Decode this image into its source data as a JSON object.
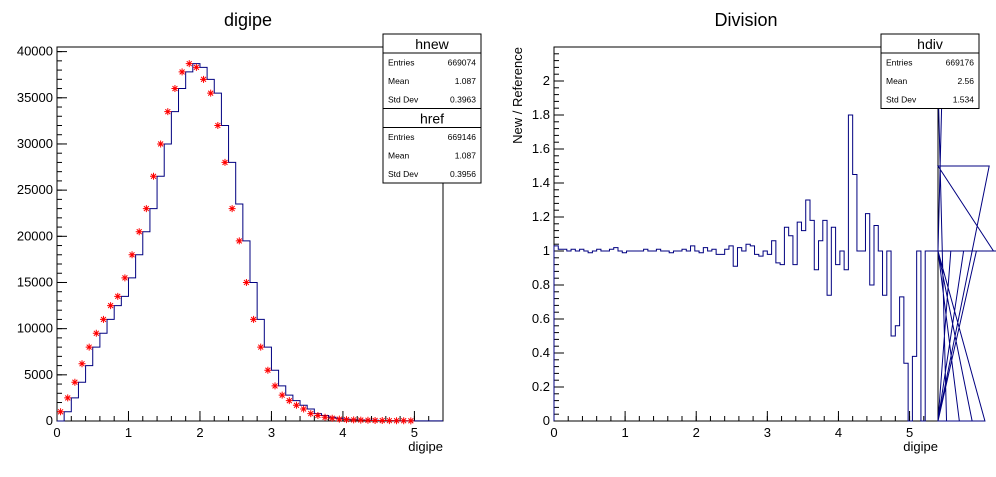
{
  "chart_data": [
    {
      "type": "line",
      "title": "digipe",
      "xlabel": "digipe",
      "ylabel": "",
      "xlim": [
        0,
        5.4
      ],
      "ylim": [
        0,
        40500
      ],
      "x_ticks": [
        0,
        1,
        2,
        3,
        4,
        5
      ],
      "y_ticks": [
        0,
        5000,
        10000,
        15000,
        20000,
        25000,
        30000,
        35000,
        40000
      ],
      "bin_width": 0.1,
      "colors": {
        "hnew": "#000080",
        "href": "#ff0000"
      },
      "series": [
        {
          "name": "hnew",
          "style": "step",
          "bin_start": 0,
          "values": [
            0,
            1000,
            2500,
            4200,
            6000,
            8000,
            9500,
            11000,
            12500,
            13500,
            15500,
            18000,
            20500,
            23000,
            26500,
            30000,
            33500,
            36000,
            37800,
            38700,
            38300,
            37000,
            35500,
            32000,
            28000,
            23500,
            19500,
            15000,
            11000,
            8000,
            5500,
            3800,
            2800,
            2200,
            1700,
            1300,
            800,
            600,
            400,
            300,
            200,
            150,
            120,
            100,
            80,
            60,
            50,
            40,
            30,
            30,
            20,
            20,
            10,
            10
          ]
        },
        {
          "name": "href",
          "style": "markers",
          "marker": "star",
          "x": [
            0.05,
            0.15,
            0.25,
            0.35,
            0.45,
            0.55,
            0.65,
            0.75,
            0.85,
            0.95,
            1.05,
            1.15,
            1.25,
            1.35,
            1.45,
            1.55,
            1.65,
            1.75,
            1.85,
            1.95,
            2.05,
            2.15,
            2.25,
            2.35,
            2.45,
            2.55,
            2.65,
            2.75,
            2.85,
            2.95,
            3.05,
            3.15,
            3.25,
            3.35,
            3.45,
            3.55,
            3.65,
            3.75,
            3.85,
            3.95,
            4.05,
            4.15,
            4.25,
            4.35,
            4.45,
            4.55,
            4.65,
            4.75,
            4.85,
            4.95
          ],
          "values": [
            1000,
            2500,
            4200,
            6200,
            8000,
            9500,
            11000,
            12500,
            13500,
            15500,
            18000,
            20500,
            23000,
            26500,
            30000,
            33500,
            36000,
            37800,
            38700,
            38300,
            37000,
            35500,
            32000,
            28000,
            23000,
            19500,
            15000,
            11000,
            8000,
            5500,
            3800,
            2800,
            2200,
            1700,
            1300,
            800,
            600,
            400,
            300,
            200,
            150,
            120,
            100,
            80,
            60,
            50,
            40,
            30,
            30,
            20
          ]
        }
      ],
      "stats": [
        {
          "name": "hnew",
          "rows": [
            [
              "Entries",
              "669074"
            ],
            [
              "Mean",
              "1.087"
            ],
            [
              "Std Dev",
              "0.3963"
            ]
          ]
        },
        {
          "name": "href",
          "rows": [
            [
              "Entries",
              "669146"
            ],
            [
              "Mean",
              "1.087"
            ],
            [
              "Std Dev",
              "0.3956"
            ]
          ]
        }
      ]
    },
    {
      "type": "line",
      "title": "Division",
      "xlabel": "digipe",
      "ylabel": "New / Reference",
      "xlim": [
        0,
        5.4
      ],
      "ylim": [
        0,
        2.2
      ],
      "x_ticks": [
        0,
        1,
        2,
        3,
        4,
        5
      ],
      "y_ticks": [
        0,
        0.2,
        0.4,
        0.6,
        0.8,
        1,
        1.2,
        1.4,
        1.6,
        1.8,
        2
      ],
      "bin_width": 0.06,
      "colors": {
        "hdiv": "#000080"
      },
      "series": [
        {
          "name": "hdiv",
          "style": "step",
          "bin_start": 0,
          "values": [
            1.03,
            1.01,
            1.01,
            1.0,
            1.01,
            1.0,
            1.01,
            1.0,
            0.99,
            1.0,
            1.01,
            1.0,
            1.0,
            1.01,
            1.02,
            1.0,
            0.99,
            1.0,
            1.0,
            1.0,
            1.0,
            1.01,
            1.0,
            1.0,
            1.01,
            1.0,
            1.0,
            0.99,
            1.0,
            1.0,
            1.01,
            1.0,
            1.03,
            1.0,
            0.99,
            1.02,
            1.0,
            1.01,
            0.98,
            0.98,
            1.01,
            1.03,
            0.91,
            1.02,
            1.0,
            1.04,
            1.03,
            0.98,
            0.97,
            1.0,
            0.98,
            1.06,
            0.93,
            0.92,
            1.14,
            1.09,
            0.92,
            1.17,
            1.12,
            1.3,
            1.18,
            0.89,
            1.06,
            1.18,
            0.74,
            1.14,
            0.92,
            1.0,
            0.89,
            1.8,
            1.45,
            1.0,
            1.0,
            1.22,
            0.8,
            1.15,
            1.0,
            0.74,
            1.0,
            0.5,
            0.56,
            0.73,
            0.34,
            0.0,
            0.38,
            1.0,
            0.0,
            1.0,
            1.0,
            1.0,
            1.0,
            2.0,
            0.0,
            1.0,
            1.0,
            0.0,
            1.0,
            1.0,
            0.0,
            1.0,
            1.0,
            0.0,
            1.5,
            1.0,
            1.0,
            1.0,
            1.0,
            1.0,
            1.0,
            1.0
          ]
        }
      ],
      "stats": [
        {
          "name": "hdiv",
          "rows": [
            [
              "Entries",
              "669176"
            ],
            [
              "Mean",
              "2.56"
            ],
            [
              "Std Dev",
              "1.534"
            ]
          ]
        }
      ]
    }
  ]
}
